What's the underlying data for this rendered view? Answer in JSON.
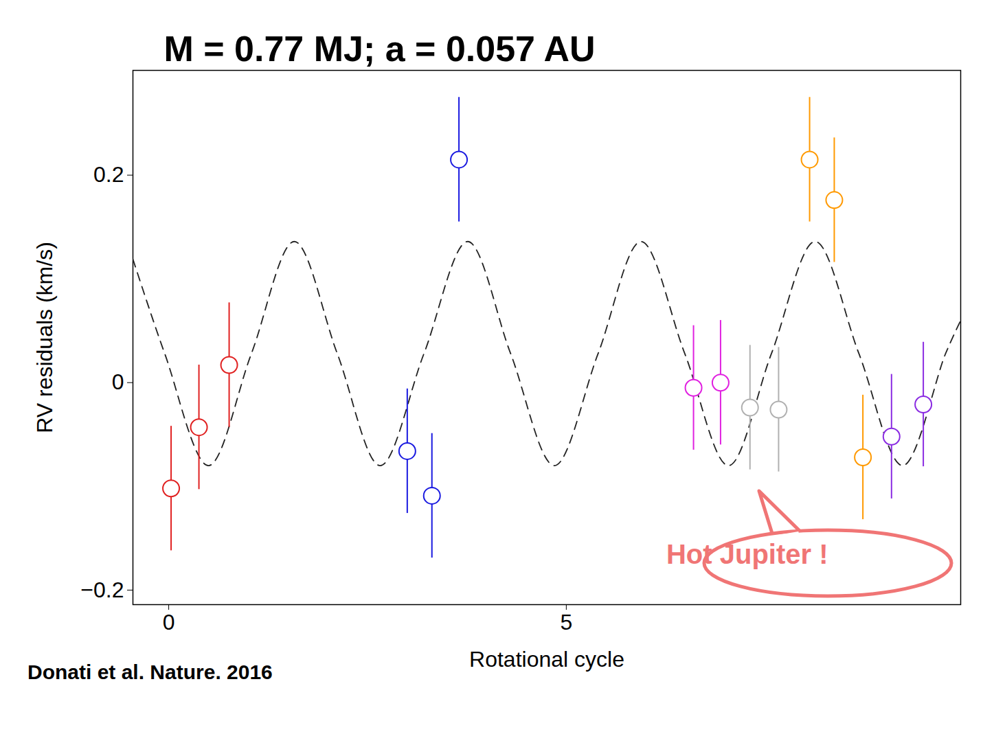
{
  "chart_data": {
    "type": "scatter",
    "title": "M = 0.77 MJ; a = 0.057 AU",
    "x_label": "Rotational cycle",
    "y_label": "RV residuals (km/s)",
    "annotations": [
      "Hot Jupiter !"
    ],
    "caption": "Donati et al. Nature. 2016",
    "xlim": [
      -0.45,
      9.96
    ],
    "ylim": [
      -0.214,
      0.301
    ],
    "xticks": [
      0,
      5
    ],
    "yticks": [
      {
        "value": -0.2,
        "label": "−0.2"
      },
      0,
      0.2
    ],
    "series": [
      {
        "type": "line",
        "color": "#222222",
        "line_style": "dashed",
        "x": [
          -0.45,
          -0.05,
          0.5,
          1.04,
          1.58,
          2.12,
          2.66,
          3.21,
          3.76,
          4.3,
          4.85,
          5.4,
          5.94,
          6.49,
          7.04,
          7.58,
          8.13,
          8.68,
          9.23,
          9.77,
          9.96
        ],
        "values": [
          0.119,
          0.028,
          -0.08,
          0.028,
          0.136,
          0.028,
          -0.08,
          0.028,
          0.136,
          0.028,
          -0.08,
          0.028,
          0.136,
          0.028,
          -0.08,
          0.028,
          0.136,
          0.028,
          -0.08,
          0.028,
          0.06
        ]
      },
      {
        "type": "scatter",
        "color": "#e02020",
        "marker": "circle",
        "x": [
          0.03,
          0.38,
          0.76
        ],
        "values": [
          -0.102,
          -0.043,
          0.017
        ],
        "errors": [
          0.06,
          0.06,
          0.06
        ]
      },
      {
        "type": "scatter",
        "color": "#1a1ae0",
        "marker": "circle",
        "x": [
          3.0,
          3.31,
          3.65
        ],
        "values": [
          -0.066,
          -0.109,
          0.215
        ],
        "errors": [
          0.06,
          0.06,
          0.06
        ]
      },
      {
        "type": "scatter",
        "color": "#e020e0",
        "marker": "circle",
        "x": [
          6.6,
          6.94
        ],
        "values": [
          -0.005,
          0.0
        ],
        "errors": [
          0.06,
          0.06
        ]
      },
      {
        "type": "scatter",
        "color": "#b0b0b0",
        "marker": "circle",
        "x": [
          7.31,
          7.67
        ],
        "values": [
          -0.024,
          -0.026
        ],
        "errors": [
          0.06,
          0.06
        ]
      },
      {
        "type": "scatter",
        "color": "#ff9900",
        "marker": "circle",
        "x": [
          8.06,
          8.37,
          8.73
        ],
        "values": [
          0.215,
          0.176,
          -0.072
        ],
        "errors": [
          0.06,
          0.06,
          0.06
        ]
      },
      {
        "type": "scatter",
        "color": "#8a2be2",
        "marker": "circle",
        "x": [
          9.09,
          9.49
        ],
        "values": [
          -0.052,
          -0.021
        ],
        "errors": [
          0.06,
          0.06
        ]
      }
    ]
  }
}
